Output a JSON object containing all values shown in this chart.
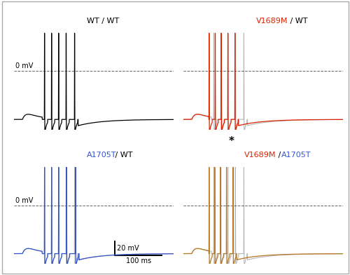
{
  "fig_width": 5.0,
  "fig_height": 3.92,
  "dpi": 100,
  "bg_color": "#ffffff",
  "top_left_label": "WT / WT",
  "top_right_label_red": "V1689M",
  "top_right_label_black": " / WT",
  "bottom_left_label_blue": "A1705T",
  "bottom_left_label_black": " / WT",
  "bottom_right_label_red": "V1689M",
  "bottom_right_label_slash": " / ",
  "bottom_right_label_blue": "A1705T",
  "color_black": "#000000",
  "color_red": "#dd2200",
  "color_blue": "#3355cc",
  "color_brown": "#b87820",
  "color_gray": "#aaaaaa",
  "zero_mv_label": "0 mV",
  "scale_bar_v": "20 mV",
  "scale_bar_t": "100 ms",
  "star_label": "*"
}
